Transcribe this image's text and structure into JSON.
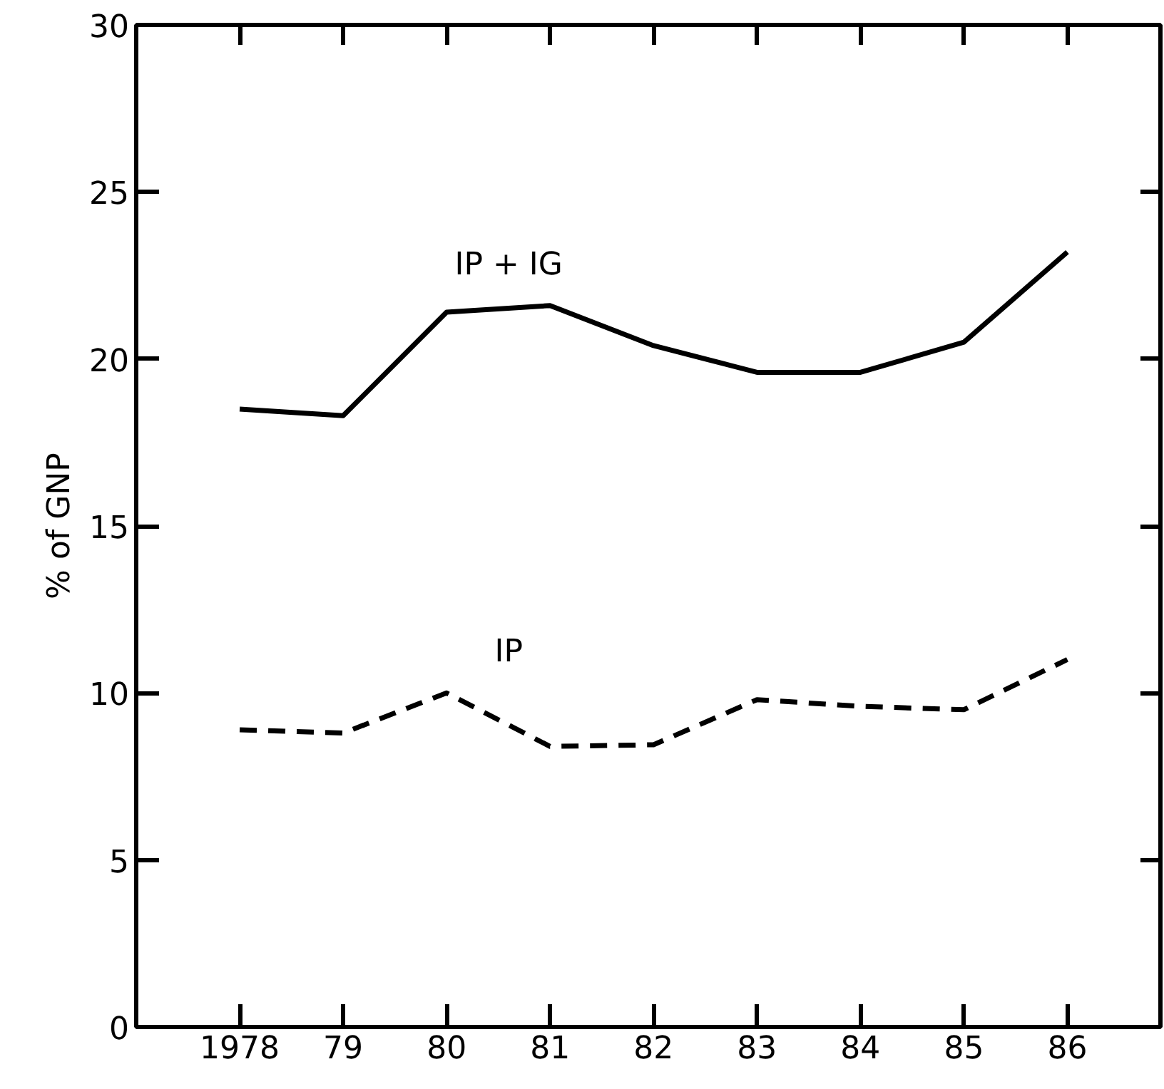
{
  "chart_data": {
    "type": "line",
    "ylabel": "% of GNP",
    "x": [
      1978,
      1979,
      1980,
      1981,
      1982,
      1983,
      1984,
      1985,
      1986
    ],
    "xlim": [
      1977,
      1986.9
    ],
    "ylim": [
      0,
      30
    ],
    "xticks": [
      1978,
      {
        "value": 1979,
        "label": "79"
      },
      {
        "value": 1980,
        "label": "80"
      },
      {
        "value": 1981,
        "label": "81"
      },
      {
        "value": 1982,
        "label": "82"
      },
      {
        "value": 1983,
        "label": "83"
      },
      {
        "value": 1984,
        "label": "84"
      },
      {
        "value": 1985,
        "label": "85"
      },
      {
        "value": 1986,
        "label": "86"
      }
    ],
    "yticks": [
      0,
      5,
      10,
      15,
      20,
      25,
      30
    ],
    "series": [
      {
        "name": "IP + IG",
        "color": "#000000",
        "line_style": "solid",
        "values": [
          18.5,
          18.3,
          21.4,
          21.6,
          20.4,
          19.6,
          19.6,
          20.5,
          23.2
        ]
      },
      {
        "name": "IP",
        "color": "#000000",
        "line_style": "dashed",
        "values": [
          8.9,
          8.8,
          10.0,
          8.4,
          8.45,
          9.8,
          9.6,
          9.5,
          11.0
        ]
      }
    ]
  }
}
